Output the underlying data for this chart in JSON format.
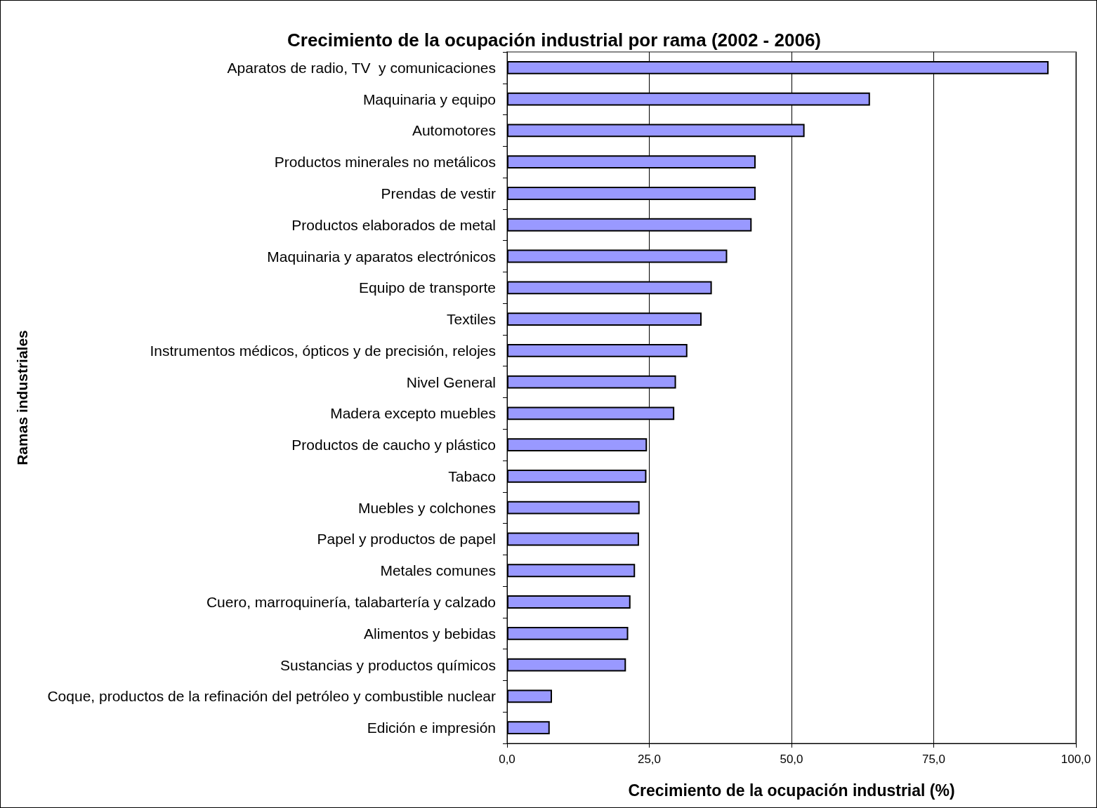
{
  "chart_data": {
    "type": "bar",
    "orientation": "horizontal",
    "title": "Crecimiento de la ocupación industrial por rama (2002 - 2006)",
    "xlabel": "Crecimiento de la ocupación industrial (%)",
    "ylabel": "Ramas industriales",
    "categories": [
      "Aparatos de radio, TV  y comunicaciones",
      "Maquinaria y equipo",
      "Automotores",
      "Productos minerales no metálicos",
      "Prendas de vestir",
      "Productos elaborados de metal",
      "Maquinaria y aparatos electrónicos",
      "Equipo de transporte",
      "Textiles",
      "Instrumentos médicos, ópticos y de precisión, relojes",
      "Nivel General",
      "Madera excepto muebles",
      "Productos de caucho y plástico",
      "Tabaco",
      "Muebles y colchones",
      "Papel y productos de papel",
      "Metales comunes",
      "Cuero, marroquinería, talabartería y calzado",
      "Alimentos y bebidas",
      "Sustancias y productos químicos",
      "Coque, productos de la refinación del petróleo y combustible nuclear",
      "Edición e impresión"
    ],
    "values": [
      95.2,
      63.8,
      52.3,
      43.7,
      43.7,
      43.0,
      38.7,
      36.0,
      34.2,
      31.7,
      29.7,
      29.4,
      24.6,
      24.5,
      23.3,
      23.2,
      22.5,
      21.7,
      21.3,
      20.9,
      7.9,
      7.5
    ],
    "color": "#9999ff",
    "xlim": [
      0,
      100
    ],
    "xticks": [
      {
        "value": 0,
        "label": "0,0"
      },
      {
        "value": 25,
        "label": "25,0"
      },
      {
        "value": 50,
        "label": "50,0"
      },
      {
        "value": 75,
        "label": "75,0"
      },
      {
        "value": 100,
        "label": "100,0"
      }
    ],
    "grid": "x"
  }
}
